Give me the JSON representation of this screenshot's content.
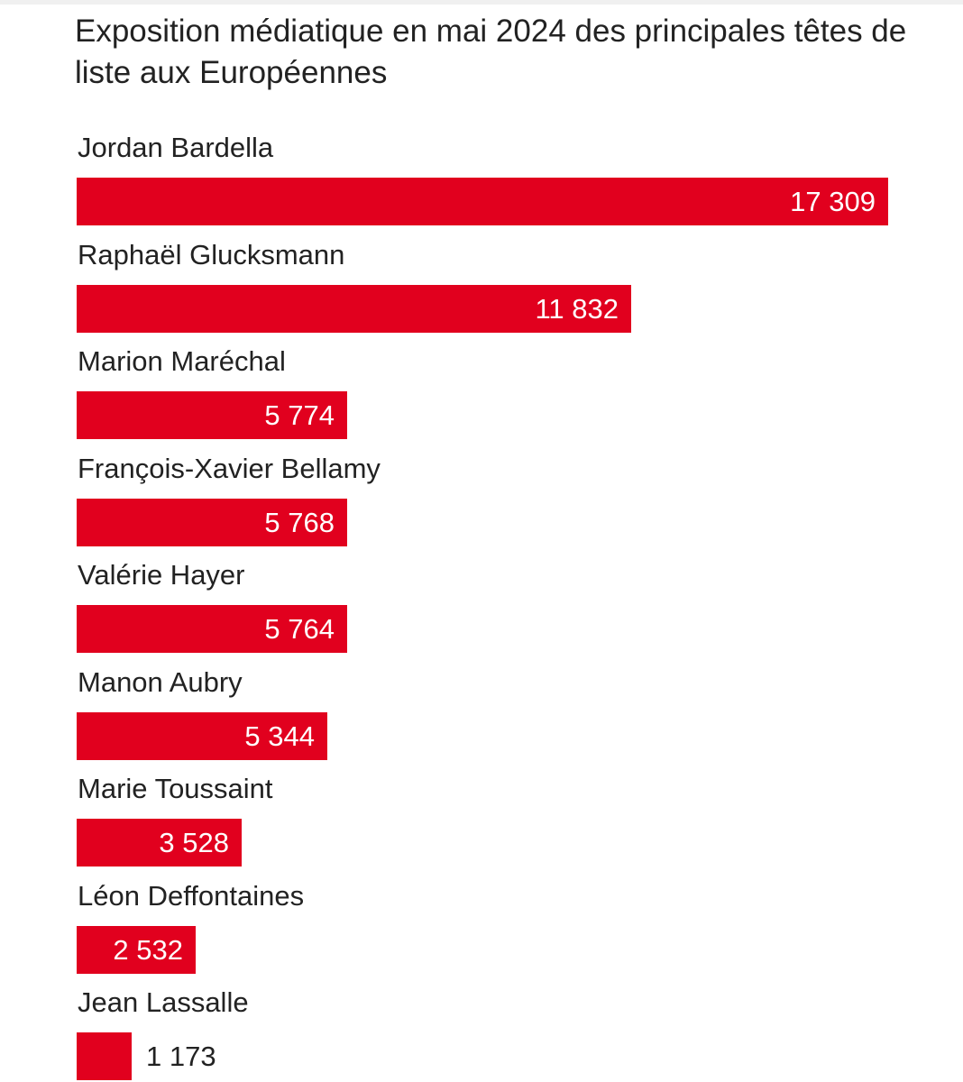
{
  "chart_data": {
    "type": "bar",
    "orientation": "horizontal",
    "title": "Exposition médiatique en mai 2024 des principales têtes de liste aux Européennes",
    "categories": [
      "Jordan Bardella",
      "Raphaël Glucksmann",
      "Marion Maréchal",
      "François-Xavier Bellamy",
      "Valérie Hayer",
      "Manon Aubry",
      "Marie Toussaint",
      "Léon Deffontaines",
      "Jean Lassalle"
    ],
    "values": [
      17309,
      11832,
      5774,
      5768,
      5764,
      5344,
      3528,
      2532,
      1173
    ],
    "value_labels": [
      "17 309",
      "11 832",
      "5 774",
      "5 768",
      "5 764",
      "5 344",
      "3 528",
      "2 532",
      "1 173"
    ],
    "xlim": [
      0,
      17309
    ],
    "grid": false,
    "legend": "none",
    "bar_color": "#e1001e"
  }
}
